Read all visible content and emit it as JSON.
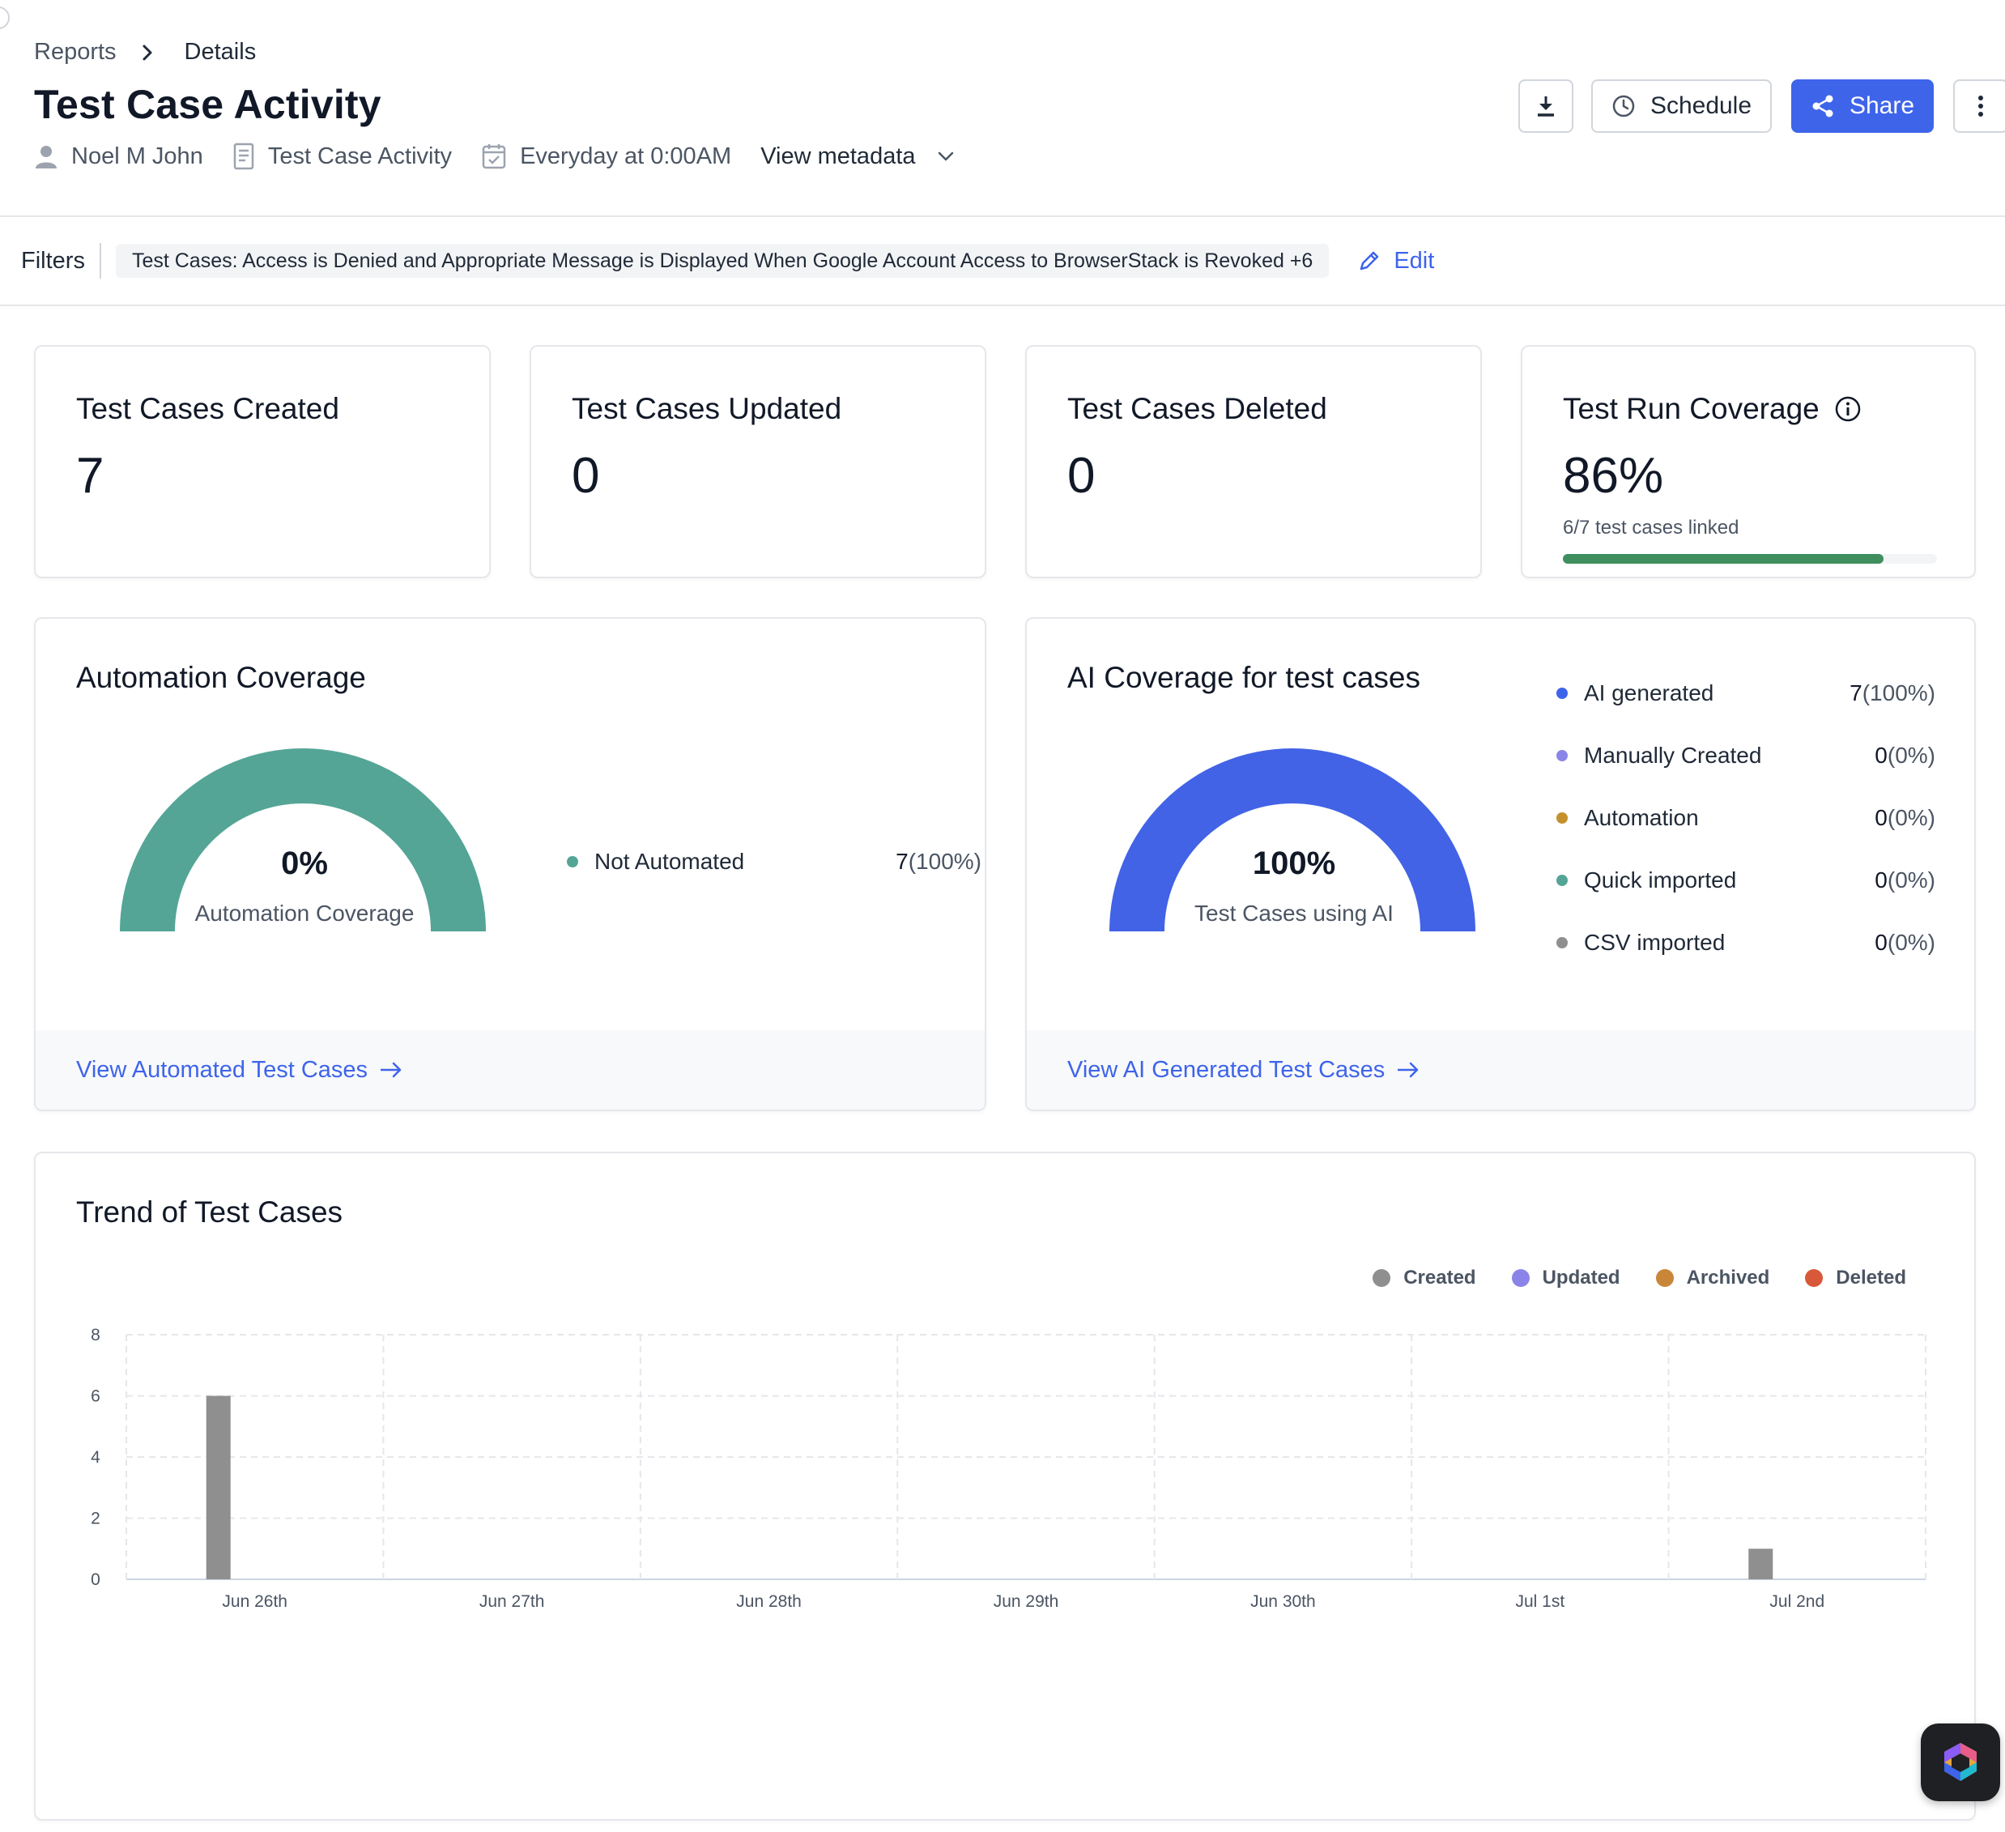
{
  "breadcrumb": {
    "parent": "Reports",
    "current": "Details"
  },
  "page": {
    "title": "Test Case Activity",
    "meta": {
      "owner": "Noel M John",
      "report_type": "Test Case Activity",
      "schedule": "Everyday at 0:00AM",
      "view_metadata": "View metadata"
    }
  },
  "toolbar": {
    "schedule_label": "Schedule",
    "share_label": "Share"
  },
  "filters": {
    "label": "Filters",
    "chip": "Test Cases: Access is Denied and Appropriate Message is Displayed When Google Account Access to BrowserStack is Revoked +6",
    "edit_label": "Edit"
  },
  "stats": {
    "created": {
      "title": "Test Cases Created",
      "value": "7"
    },
    "updated": {
      "title": "Test Cases Updated",
      "value": "0"
    },
    "deleted": {
      "title": "Test Cases Deleted",
      "value": "0"
    },
    "coverage": {
      "title": "Test Run Coverage",
      "value": "86%",
      "sub": "6/7 test cases linked",
      "progress": 0.857
    }
  },
  "automation": {
    "title": "Automation Coverage",
    "gauge_value": "0%",
    "gauge_label": "Automation Coverage",
    "gauge_color": "#54a596",
    "legend": [
      {
        "label": "Not Automated",
        "count": "7",
        "pct": "(100%)",
        "color": "#54a596"
      }
    ],
    "footer_link": "View Automated Test Cases"
  },
  "ai": {
    "title": "AI Coverage for test cases",
    "gauge_value": "100%",
    "gauge_label": "Test Cases using AI",
    "gauge_color": "#4263e6",
    "legend": [
      {
        "label": "AI generated",
        "count": "7",
        "pct": "(100%)",
        "color": "#3e64ea"
      },
      {
        "label": "Manually Created",
        "count": "0",
        "pct": "(0%)",
        "color": "#8b84e8"
      },
      {
        "label": "Automation",
        "count": "0",
        "pct": "(0%)",
        "color": "#c4912f"
      },
      {
        "label": "Quick imported",
        "count": "0",
        "pct": "(0%)",
        "color": "#54a596"
      },
      {
        "label": "CSV imported",
        "count": "0",
        "pct": "(0%)",
        "color": "#8f8f8f"
      }
    ],
    "footer_link": "View AI Generated Test Cases"
  },
  "trend": {
    "title": "Trend of Test Cases"
  },
  "chart_data": {
    "type": "bar",
    "categories": [
      "Jun 26th",
      "Jun 27th",
      "Jun 28th",
      "Jun 29th",
      "Jun 30th",
      "Jul 1st",
      "Jul 2nd"
    ],
    "series": [
      {
        "name": "Created",
        "color": "#8f8f8f",
        "values": [
          6,
          0,
          0,
          0,
          0,
          0,
          1
        ]
      },
      {
        "name": "Updated",
        "color": "#8b84e8",
        "values": [
          0,
          0,
          0,
          0,
          0,
          0,
          0
        ]
      },
      {
        "name": "Archived",
        "color": "#c98638",
        "values": [
          0,
          0,
          0,
          0,
          0,
          0,
          0
        ]
      },
      {
        "name": "Deleted",
        "color": "#d8593a",
        "values": [
          0,
          0,
          0,
          0,
          0,
          0,
          0
        ]
      }
    ],
    "ylim": [
      0,
      8
    ],
    "yticks": [
      0,
      2,
      4,
      6,
      8
    ],
    "grid": true,
    "legend_position": "top-right"
  }
}
